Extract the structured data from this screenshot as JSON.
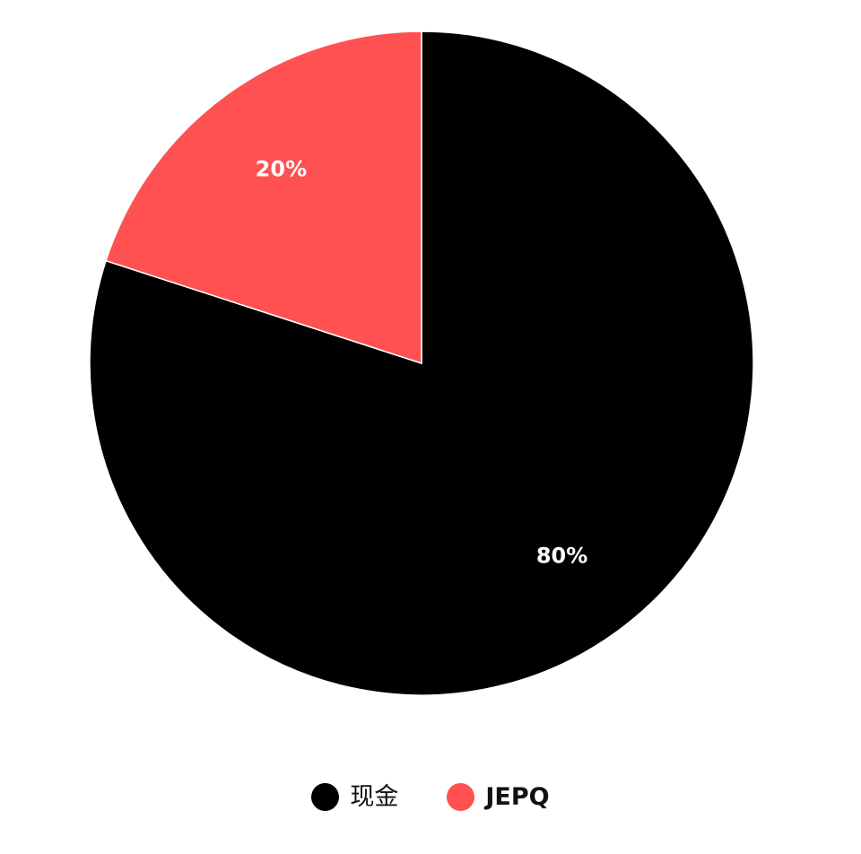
{
  "chart_data": {
    "type": "pie",
    "categories": [
      "现金",
      "JEPQ"
    ],
    "values": [
      80,
      20
    ],
    "colors": [
      "#000000",
      "#ff5151"
    ],
    "data_labels": [
      "80%",
      "20%"
    ],
    "title": "",
    "legend_placement": "bottom"
  },
  "legend": {
    "items": [
      {
        "label": "现金",
        "color": "#000000"
      },
      {
        "label": "JEPQ",
        "color": "#ff5151"
      }
    ]
  }
}
